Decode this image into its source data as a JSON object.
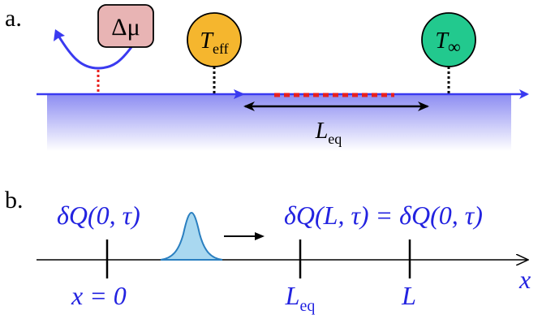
{
  "panel_a": {
    "label": "a.",
    "reservoir_chemical": {
      "text": "Δμ",
      "fill": "#e8b4b4",
      "stroke": "#000000"
    },
    "probe_effective": {
      "symbol": "T",
      "subscript": "eff",
      "fill": "#f5b62e"
    },
    "probe_infinity": {
      "symbol": "T",
      "subscript": "∞",
      "fill": "#22c98e"
    },
    "length_label": {
      "symbol": "L",
      "subscript": "eq"
    },
    "colors": {
      "arrow": "#3a3af0",
      "dotted_red": "#e8201e",
      "dotted_black": "#000000",
      "band_top": "#8c8cf2",
      "band_bottom": "#ffffff"
    }
  },
  "panel_b": {
    "label": "b.",
    "left_expression": "δQ(0, τ)",
    "right_expression": "δQ(L, τ) = δQ(0, τ)",
    "tick_x0": "x = 0",
    "tick_leq": {
      "symbol": "L",
      "subscript": "eq"
    },
    "tick_l": "L",
    "axis_label": "x",
    "colors": {
      "text": "#2323e0",
      "pulse_fill": "#a9d8f0",
      "pulse_stroke": "#2a7fc0"
    }
  }
}
